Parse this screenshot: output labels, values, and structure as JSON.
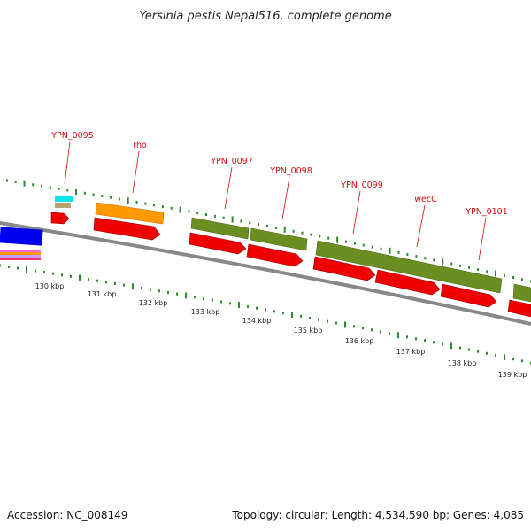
{
  "title": "Yersinia pestis Nepal516, complete genome",
  "footer": {
    "accession": "Accession: NC_008149",
    "summary": "Topology: circular; Length: 4,534,590 bp; Genes: 4,085"
  },
  "colors": {
    "background": "#ffffff",
    "gene_label": "#cc1111",
    "cds": "#ee0000",
    "gene_feature": "#6b8e23",
    "orange_feature": "#ff9900",
    "blue_feature": "#0000ee",
    "tick": "#2e8b2e",
    "backbone": "#888888"
  },
  "gene_labels": [
    {
      "id": "g95",
      "text": "YPN_0095"
    },
    {
      "id": "g96",
      "text": "rho"
    },
    {
      "id": "g97",
      "text": "YPN_0097"
    },
    {
      "id": "g98",
      "text": "YPN_0098"
    },
    {
      "id": "g99",
      "text": "YPN_0099"
    },
    {
      "id": "g100",
      "text": "wecC"
    },
    {
      "id": "g101",
      "text": "YPN_0101"
    }
  ],
  "kbp_labels": [
    "130 kbp",
    "131 kbp",
    "132 kbp",
    "133 kbp",
    "134 kbp",
    "135 kbp",
    "136 kbp",
    "137 kbp",
    "138 kbp",
    "139 kbp"
  ]
}
